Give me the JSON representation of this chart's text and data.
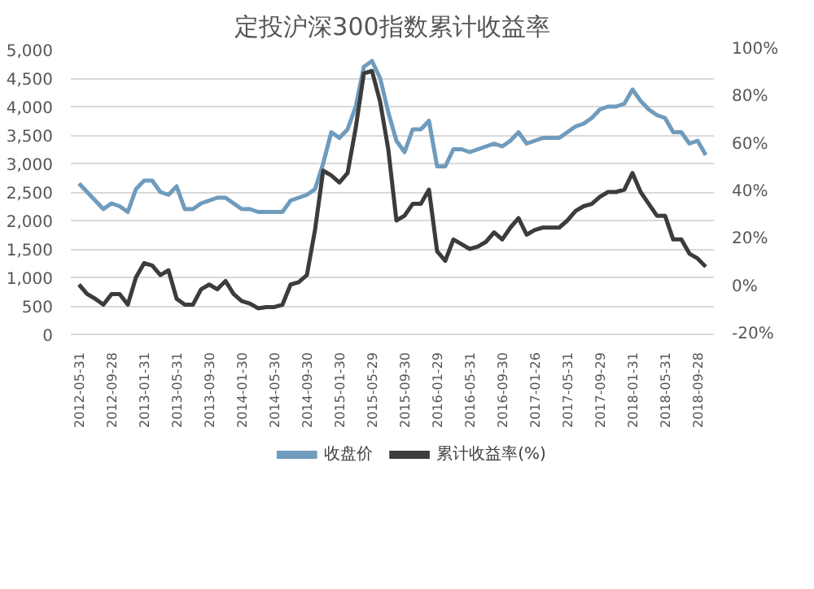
{
  "chart_data": {
    "type": "line",
    "title": "定投沪深300指数累计收益率",
    "categories": [
      "2012-05-31",
      null,
      null,
      null,
      "2012-09-28",
      null,
      null,
      null,
      "2013-01-31",
      null,
      null,
      null,
      "2013-05-31",
      null,
      null,
      null,
      "2013-09-30",
      null,
      null,
      null,
      "2014-01-30",
      null,
      null,
      null,
      "2014-05-30",
      null,
      null,
      null,
      "2014-09-30",
      null,
      null,
      null,
      "2015-01-30",
      null,
      null,
      null,
      "2015-05-29",
      null,
      null,
      null,
      "2015-09-30",
      null,
      null,
      null,
      "2016-01-29",
      null,
      null,
      null,
      "2016-05-31",
      null,
      null,
      null,
      "2016-09-30",
      null,
      null,
      null,
      "2017-01-26",
      null,
      null,
      null,
      "2017-05-31",
      null,
      null,
      null,
      "2017-09-29",
      null,
      null,
      null,
      "2018-01-31",
      null,
      null,
      null,
      "2018-05-31",
      null,
      null,
      null,
      "2018-09-28",
      null
    ],
    "series": [
      {
        "name": "收盘价",
        "color": "#6f9bbd",
        "values": [
          2650,
          2500,
          2350,
          2200,
          2300,
          2250,
          2150,
          2550,
          2700,
          2700,
          2500,
          2450,
          2600,
          2200,
          2200,
          2300,
          2350,
          2400,
          2400,
          2300,
          2200,
          2200,
          2150,
          2150,
          2150,
          2150,
          2350,
          2400,
          2450,
          2550,
          3000,
          3550,
          3450,
          3600,
          4000,
          4700,
          4800,
          4500,
          3900,
          3400,
          3200,
          3600,
          3600,
          3750,
          2950,
          2950,
          3250,
          3250,
          3200,
          3250,
          3300,
          3350,
          3300,
          3400,
          3550,
          3350,
          3400,
          3450,
          3450,
          3450,
          3550,
          3650,
          3700,
          3800,
          3950,
          4000,
          4000,
          4050,
          4300,
          4100,
          3950,
          3850,
          3800,
          3550,
          3550,
          3350,
          3400,
          3150
        ]
      },
      {
        "name": "累计收益率(%)",
        "color": "#3c3c3c",
        "axis": "y2",
        "values": [
          1,
          -3,
          -5,
          -7.5,
          -3,
          -3,
          -7.5,
          4,
          10,
          9,
          5,
          7,
          -5,
          -7.5,
          -7.5,
          -1,
          1,
          -1,
          2.5,
          -3,
          -6,
          -7,
          -9,
          -8.5,
          -8.5,
          -7.5,
          1,
          2,
          5,
          24,
          49,
          47,
          44,
          48,
          67,
          90,
          91,
          78,
          58,
          28,
          30,
          35,
          35,
          41,
          15,
          11,
          20,
          18,
          16,
          17,
          19,
          23,
          20,
          25,
          29,
          22,
          24,
          25,
          25,
          25,
          28,
          32,
          34,
          35,
          38,
          40,
          40,
          41,
          48,
          40,
          35,
          30,
          30,
          20,
          20,
          14,
          12,
          8.5
        ]
      }
    ],
    "ylim": [
      0,
      5000
    ],
    "yticks": [
      0,
      500,
      {
        "value": 1000,
        "label": "1,000"
      },
      {
        "value": 1500,
        "label": "1,500"
      },
      {
        "value": 2000,
        "label": "2,000"
      },
      {
        "value": 2500,
        "label": "2,500"
      },
      {
        "value": 3000,
        "label": "3,000"
      },
      {
        "value": 3500,
        "label": "3,500"
      },
      {
        "value": 4000,
        "label": "4,000"
      },
      {
        "value": 4500,
        "label": "4,500"
      },
      {
        "value": 5000,
        "label": "5,000"
      }
    ],
    "y2lim": [
      -20,
      100
    ],
    "y2ticks": [
      {
        "value": -20,
        "label": "-20%"
      },
      {
        "value": 0,
        "label": "0%"
      },
      {
        "value": 20,
        "label": "20%"
      },
      {
        "value": 40,
        "label": "40%"
      },
      {
        "value": 60,
        "label": "60%"
      },
      {
        "value": 80,
        "label": "80%"
      },
      {
        "value": 100,
        "label": "100%"
      }
    ],
    "grid": "y",
    "legend": "bottom"
  }
}
